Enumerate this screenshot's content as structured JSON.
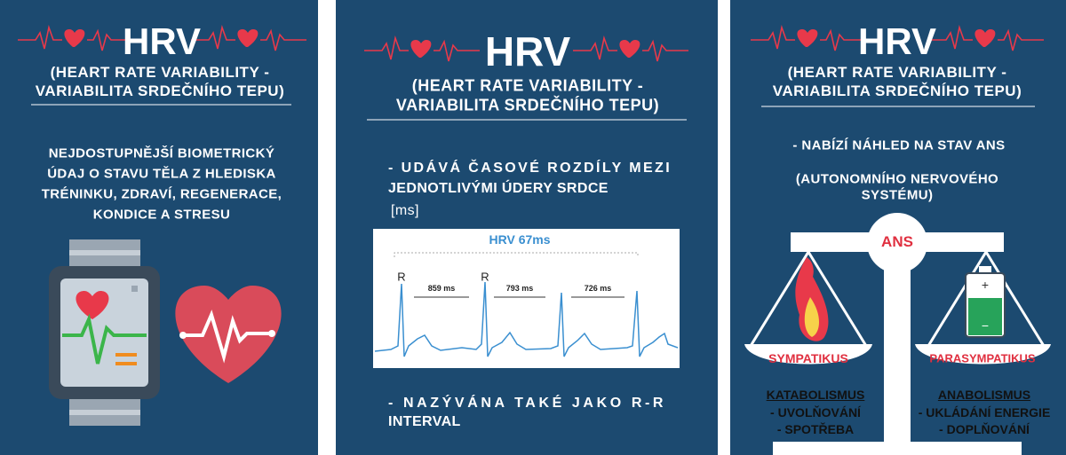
{
  "panels": [
    {
      "title": "HRV",
      "subtitle": [
        "(HEART RATE VARIABILITY -",
        "VARIABILITA SRDEČNÍHO TEPU)"
      ],
      "body": [
        "NEJDOSTUPNĚJŠÍ BIOMETRICKÝ",
        "ÚDAJ O STAVU TĚLA Z HLEDISKA",
        "TRÉNINKU, ZDRAVÍ, REGENERACE,",
        "KONDICE A STRESU"
      ]
    },
    {
      "title": "HRV",
      "subtitle": [
        "(HEART RATE VARIABILITY -",
        "VARIABILITA SRDEČNÍHO TEPU)"
      ],
      "body": [
        "- UDÁVÁ ČASOVÉ ROZDÍLY MEZI",
        "JEDNOTLIVÝMI ÚDERY SRDCE",
        "[ms]"
      ],
      "ecg": {
        "title": "HRV 67ms",
        "peak_labels": [
          "R",
          "R"
        ],
        "intervals": [
          "859 ms",
          "793 ms",
          "726 ms"
        ]
      },
      "footer": [
        "- NAZÝVÁNA TAKÉ JAKO R-R",
        "INTERVAL"
      ]
    },
    {
      "title": "HRV",
      "subtitle": [
        "(HEART RATE VARIABILITY -",
        "VARIABILITA SRDEČNÍHO TEPU)"
      ],
      "body": [
        "- NABÍZÍ NÁHLED NA STAV ANS",
        "(AUTONOMNÍHO NERVOVÉHO",
        "SYSTÉMU)"
      ],
      "scale": {
        "center": "ANS",
        "left": "SYMPATIKUS",
        "right": "PARASYMPATIKUS",
        "left_list": [
          "KATABOLISMUS",
          "- UVOLŇOVÁNÍ",
          "- SPOTŘEBA"
        ],
        "right_list": [
          "ANABOLISMUS",
          "- UKLÁDÁNÍ ENERGIE",
          "- DOPLŇOVÁNÍ"
        ]
      }
    }
  ]
}
